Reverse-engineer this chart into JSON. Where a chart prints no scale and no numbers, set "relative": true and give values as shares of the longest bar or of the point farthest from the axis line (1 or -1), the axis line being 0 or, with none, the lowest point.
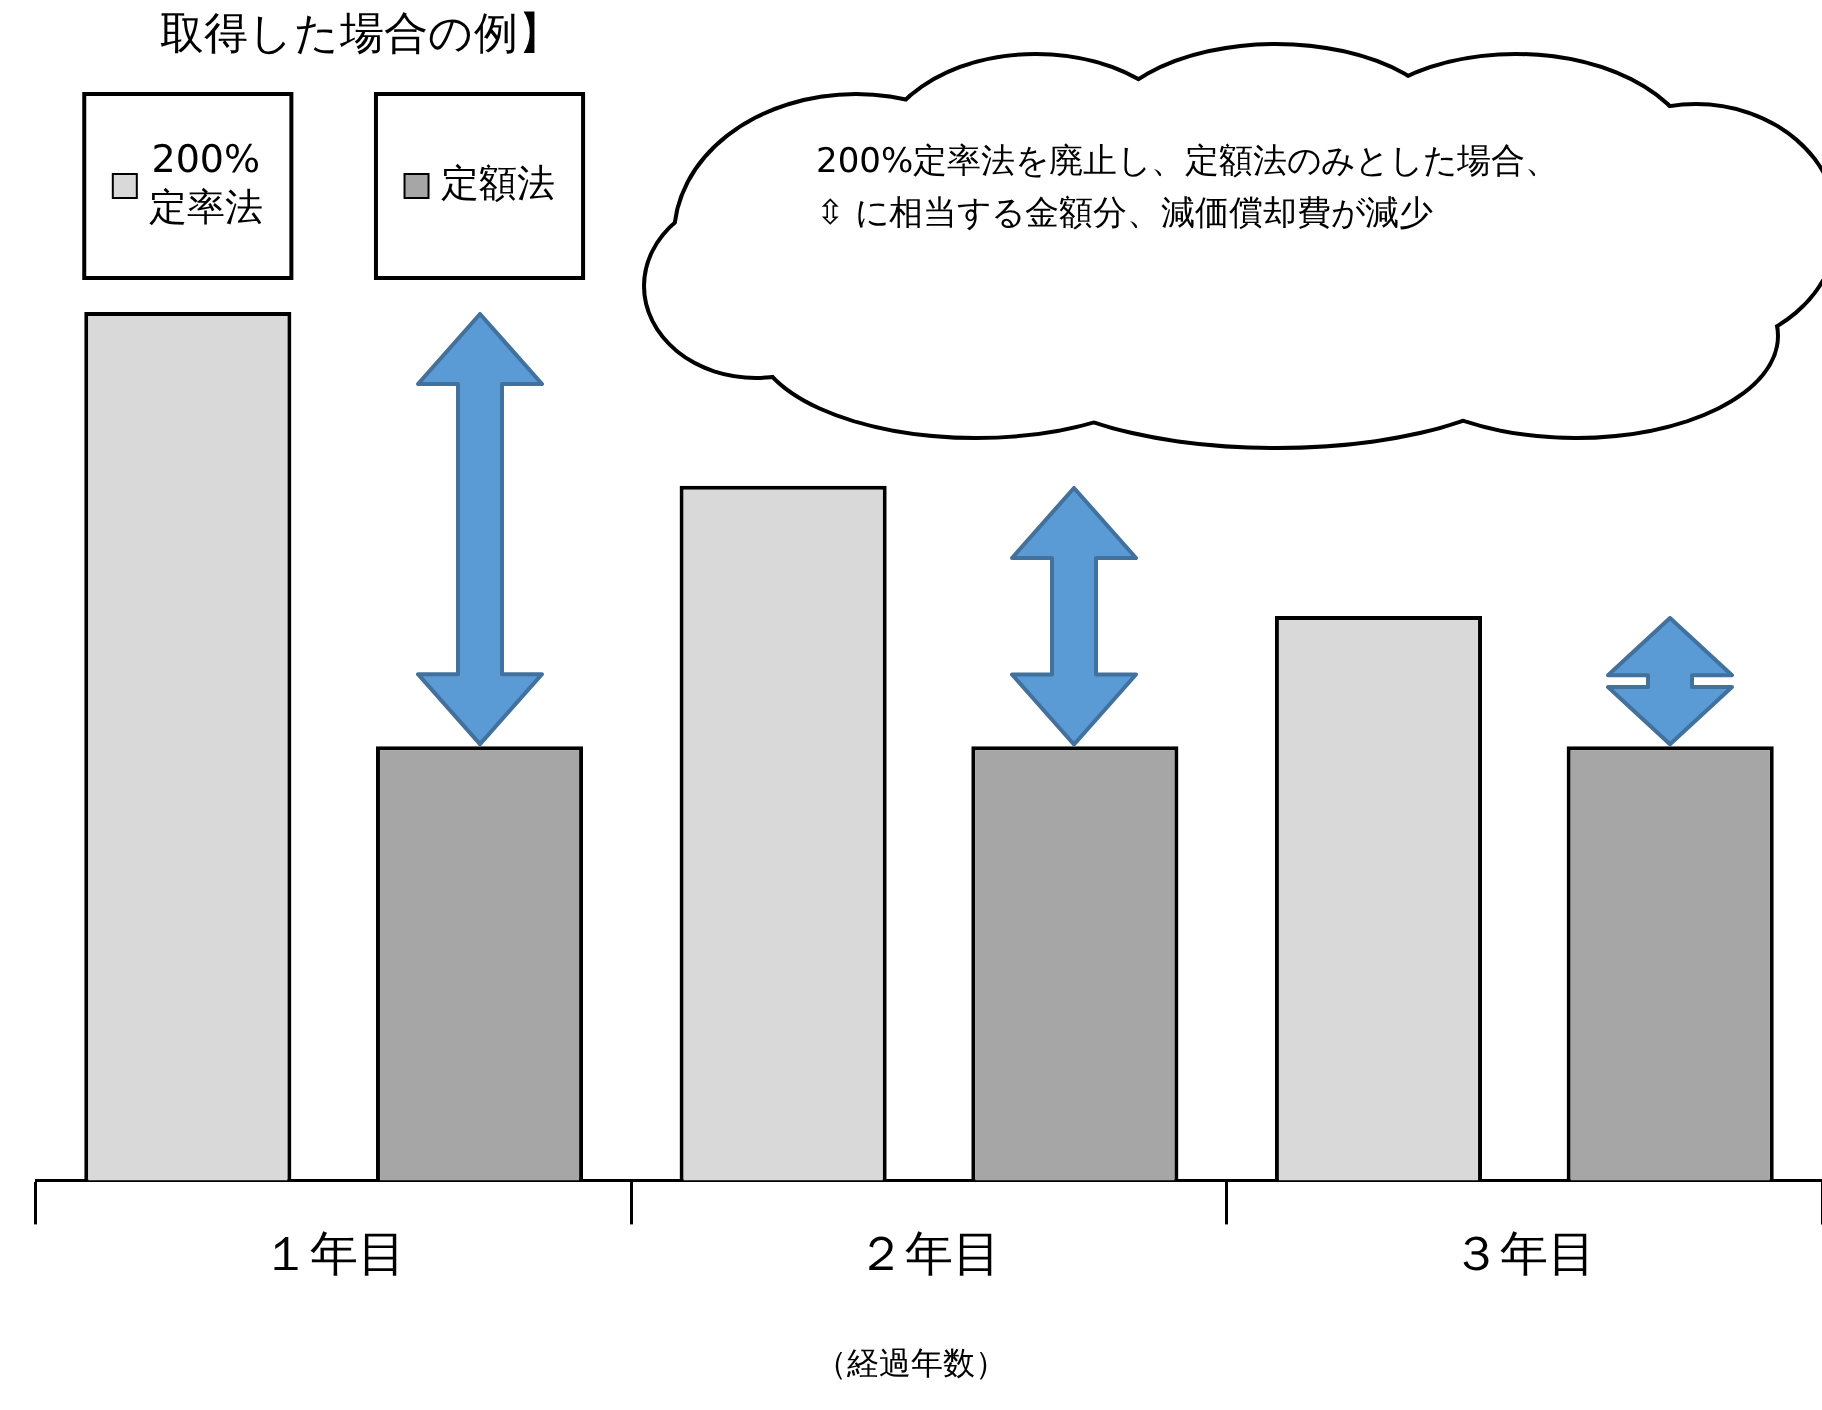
{
  "chart_data": {
    "type": "bar",
    "title": "取得した場合の例】",
    "xlabel": "（経過年数）",
    "relative": true,
    "categories": [
      "１年目",
      "２年目",
      "３年目"
    ],
    "series": [
      {
        "name": "200%定率法",
        "color": "#d9d9d9",
        "values": [
          1,
          0.8,
          0.65
        ]
      },
      {
        "name": "定額法",
        "color": "#a6a6a6",
        "values": [
          0.5,
          0.5,
          0.5
        ]
      }
    ],
    "annotations": [
      "200%定率法を廃止し、定額法のみとした場合、⇳ に相当する金額分、減価償却費が減少"
    ],
    "legend": "top left",
    "grid": false
  }
}
